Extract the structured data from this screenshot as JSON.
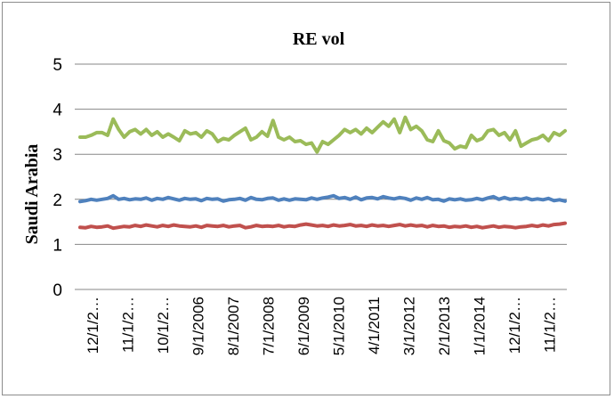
{
  "chart_data": {
    "type": "line",
    "title": "RE vol",
    "xlabel": "",
    "ylabel": "Saudi Arabia",
    "ylim": [
      0,
      5
    ],
    "yticks": [
      "0",
      "1",
      "2",
      "3",
      "4",
      "5"
    ],
    "grid": true,
    "legend": "none",
    "x_tick_labels": [
      "12/1/2…",
      "11/1/2…",
      "10/1/2…",
      "9/1/2006",
      "8/1/2007",
      "7/1/2008",
      "6/1/2009",
      "5/1/2010",
      "4/1/2011",
      "3/1/2012",
      "2/1/2013",
      "1/1/2014",
      "12/1/2…",
      "11/1/2…"
    ],
    "series": [
      {
        "color": "#9bbb59",
        "values": [
          3.38,
          3.38,
          3.42,
          3.48,
          3.48,
          3.42,
          3.78,
          3.55,
          3.38,
          3.5,
          3.55,
          3.45,
          3.55,
          3.42,
          3.5,
          3.38,
          3.45,
          3.38,
          3.3,
          3.52,
          3.45,
          3.48,
          3.38,
          3.52,
          3.45,
          3.28,
          3.35,
          3.32,
          3.42,
          3.5,
          3.58,
          3.32,
          3.38,
          3.5,
          3.4,
          3.75,
          3.38,
          3.32,
          3.38,
          3.28,
          3.3,
          3.22,
          3.25,
          3.05,
          3.28,
          3.22,
          3.32,
          3.42,
          3.55,
          3.48,
          3.55,
          3.45,
          3.58,
          3.48,
          3.6,
          3.72,
          3.62,
          3.78,
          3.48,
          3.82,
          3.55,
          3.62,
          3.52,
          3.32,
          3.28,
          3.52,
          3.3,
          3.25,
          3.12,
          3.18,
          3.15,
          3.42,
          3.3,
          3.35,
          3.52,
          3.55,
          3.42,
          3.48,
          3.32,
          3.52,
          3.18,
          3.25,
          3.32,
          3.35,
          3.42,
          3.3,
          3.48,
          3.42,
          3.52
        ]
      },
      {
        "color": "#4f81bd",
        "values": [
          1.95,
          1.97,
          2.0,
          1.98,
          2.0,
          2.02,
          2.08,
          2.0,
          2.02,
          1.99,
          2.01,
          2.0,
          2.03,
          1.98,
          2.02,
          2.0,
          2.04,
          2.01,
          1.98,
          2.02,
          2.0,
          2.01,
          1.97,
          2.02,
          2.0,
          2.01,
          1.96,
          1.99,
          2.0,
          2.02,
          1.98,
          2.04,
          2.0,
          1.99,
          2.02,
          2.03,
          1.98,
          2.01,
          1.98,
          2.01,
          2.0,
          1.99,
          2.03,
          2.0,
          2.03,
          2.05,
          2.08,
          2.02,
          2.04,
          2.0,
          2.05,
          1.99,
          2.03,
          2.04,
          2.01,
          2.06,
          2.03,
          2.01,
          2.04,
          2.02,
          1.98,
          2.03,
          2.0,
          2.04,
          1.99,
          2.0,
          1.96,
          2.01,
          1.99,
          2.01,
          1.98,
          1.99,
          2.02,
          1.99,
          2.03,
          2.06,
          2.0,
          2.04,
          2.0,
          2.02,
          2.0,
          2.03,
          1.99,
          2.01,
          1.99,
          2.02,
          1.97,
          1.99,
          1.96
        ]
      },
      {
        "color": "#c0504d",
        "values": [
          1.38,
          1.37,
          1.4,
          1.38,
          1.39,
          1.41,
          1.36,
          1.38,
          1.4,
          1.39,
          1.42,
          1.4,
          1.43,
          1.41,
          1.39,
          1.42,
          1.4,
          1.43,
          1.41,
          1.4,
          1.39,
          1.41,
          1.38,
          1.42,
          1.41,
          1.4,
          1.42,
          1.39,
          1.41,
          1.42,
          1.37,
          1.39,
          1.42,
          1.4,
          1.41,
          1.4,
          1.42,
          1.39,
          1.41,
          1.4,
          1.43,
          1.45,
          1.43,
          1.41,
          1.42,
          1.4,
          1.43,
          1.41,
          1.42,
          1.44,
          1.41,
          1.42,
          1.4,
          1.43,
          1.41,
          1.42,
          1.4,
          1.42,
          1.44,
          1.41,
          1.43,
          1.41,
          1.42,
          1.39,
          1.42,
          1.4,
          1.41,
          1.38,
          1.4,
          1.39,
          1.41,
          1.38,
          1.4,
          1.37,
          1.39,
          1.41,
          1.38,
          1.4,
          1.39,
          1.37,
          1.39,
          1.4,
          1.42,
          1.4,
          1.43,
          1.41,
          1.44,
          1.45,
          1.47
        ]
      }
    ]
  }
}
